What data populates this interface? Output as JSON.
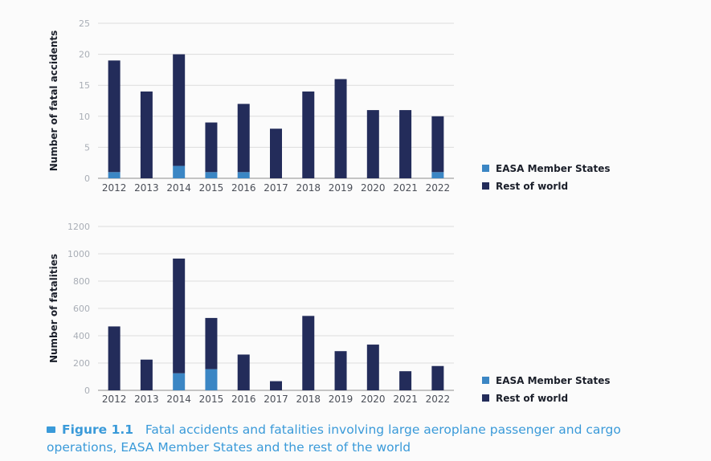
{
  "legend": {
    "colors": {
      "easa": "#3b86c4",
      "rest": "#232c5a"
    }
  },
  "caption": {
    "figure_label": "Figure 1.1",
    "text": "Fatal accidents and fatalities involving large aeroplane passenger and cargo operations, EASA Member States and the rest of the world"
  },
  "chart_data": [
    {
      "type": "bar",
      "stacked": true,
      "categories": [
        "2012",
        "2013",
        "2014",
        "2015",
        "2016",
        "2017",
        "2018",
        "2019",
        "2020",
        "2021",
        "2022"
      ],
      "series": [
        {
          "name": "EASA Member States",
          "values": [
            1,
            0,
            2,
            1,
            1,
            0,
            0,
            0,
            0,
            0,
            1
          ]
        },
        {
          "name": "Rest of world",
          "values": [
            18,
            14,
            18,
            8,
            11,
            8,
            14,
            16,
            11,
            11,
            9
          ]
        }
      ],
      "ylabel": "Number of fatal accidents",
      "ylim": [
        0,
        25
      ],
      "yticks": [
        0,
        5,
        10,
        15,
        20,
        25
      ],
      "grid": true,
      "legend_position": "right"
    },
    {
      "type": "bar",
      "stacked": true,
      "categories": [
        "2012",
        "2013",
        "2014",
        "2015",
        "2016",
        "2017",
        "2018",
        "2019",
        "2020",
        "2021",
        "2022"
      ],
      "series": [
        {
          "name": "EASA Member States",
          "values": [
            0,
            0,
            125,
            155,
            0,
            0,
            0,
            0,
            0,
            0,
            0
          ]
        },
        {
          "name": "Rest of world",
          "values": [
            468,
            225,
            840,
            375,
            262,
            67,
            545,
            287,
            335,
            140,
            178
          ]
        }
      ],
      "ylabel": "Number of fatalities",
      "ylim": [
        0,
        1200
      ],
      "yticks": [
        0,
        200,
        400,
        600,
        800,
        1000,
        1200
      ],
      "grid": true,
      "legend_position": "right"
    }
  ]
}
